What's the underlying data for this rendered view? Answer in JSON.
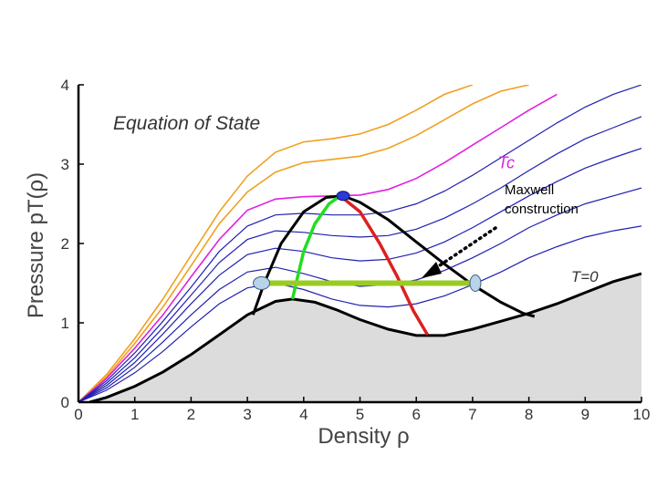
{
  "chart_data": {
    "type": "line",
    "title": "Equation of State",
    "xlabel": "Density  ρ",
    "ylabel": "Pressure  pT(ρ)",
    "xlim": [
      0,
      10
    ],
    "ylim": [
      0,
      4
    ],
    "xticks": [
      "0",
      "1",
      "2",
      "3",
      "4",
      "5",
      "6",
      "7",
      "8",
      "9",
      "10"
    ],
    "yticks": [
      "0",
      "1",
      "2",
      "3",
      "4"
    ],
    "grid": false,
    "annotations": {
      "tc_label": "Tc",
      "maxwell_label_line1": "Maxwell",
      "maxwell_label_line2": "construction",
      "t0_label": "T=0"
    },
    "colors": {
      "hot_isotherm": "#f0a020",
      "critical_isotherm": "#e020e0",
      "cold_isotherm": "#2020b0",
      "boundary": "#000000",
      "spinodal_left": "#22dd22",
      "spinodal_right": "#dd2020",
      "maxwell_line": "#99cc22",
      "shaded_region": "#dcdcdc"
    },
    "isotherms_hot": [
      {
        "x": [
          0,
          0.5,
          1,
          1.5,
          2,
          2.5,
          3,
          3.5,
          4,
          4.5,
          5,
          5.5,
          6,
          6.5,
          7
        ],
        "y": [
          0,
          0.35,
          0.8,
          1.3,
          1.85,
          2.4,
          2.85,
          3.15,
          3.28,
          3.32,
          3.38,
          3.5,
          3.68,
          3.88,
          4.0
        ]
      },
      {
        "x": [
          0,
          0.5,
          1,
          1.5,
          2,
          2.5,
          3,
          3.5,
          4,
          4.5,
          5,
          5.5,
          6,
          6.5,
          7,
          7.5,
          8
        ],
        "y": [
          0,
          0.32,
          0.74,
          1.2,
          1.72,
          2.25,
          2.65,
          2.9,
          3.02,
          3.06,
          3.1,
          3.2,
          3.36,
          3.56,
          3.76,
          3.92,
          4.0
        ]
      }
    ],
    "isotherm_critical": {
      "x": [
        0,
        0.5,
        1,
        1.5,
        2,
        2.5,
        3,
        3.5,
        4,
        4.5,
        5,
        5.5,
        6,
        6.5,
        7,
        7.5,
        8,
        8.5
      ],
      "y": [
        0,
        0.3,
        0.68,
        1.1,
        1.58,
        2.05,
        2.42,
        2.56,
        2.59,
        2.6,
        2.61,
        2.68,
        2.82,
        3.02,
        3.24,
        3.46,
        3.68,
        3.88
      ]
    },
    "isotherms_cold": [
      {
        "x": [
          0,
          0.5,
          1,
          1.5,
          2,
          2.5,
          3,
          3.5,
          4,
          4.5,
          5,
          5.5,
          6,
          6.5,
          7,
          7.5,
          8,
          8.5,
          9,
          9.5,
          10
        ],
        "y": [
          0,
          0.27,
          0.62,
          1.02,
          1.45,
          1.9,
          2.22,
          2.36,
          2.38,
          2.36,
          2.36,
          2.4,
          2.5,
          2.66,
          2.86,
          3.08,
          3.3,
          3.52,
          3.72,
          3.88,
          4.0
        ]
      },
      {
        "x": [
          0,
          0.5,
          1,
          1.5,
          2,
          2.5,
          3,
          3.5,
          4,
          4.5,
          5,
          5.5,
          6,
          6.5,
          7,
          7.5,
          8,
          8.5,
          9,
          9.5,
          10
        ],
        "y": [
          0,
          0.24,
          0.56,
          0.94,
          1.35,
          1.76,
          2.05,
          2.16,
          2.14,
          2.1,
          2.08,
          2.1,
          2.18,
          2.32,
          2.5,
          2.7,
          2.92,
          3.13,
          3.32,
          3.46,
          3.6
        ]
      },
      {
        "x": [
          0,
          0.5,
          1,
          1.5,
          2,
          2.5,
          3,
          3.5,
          4,
          4.5,
          5,
          5.5,
          6,
          6.5,
          7,
          7.5,
          8,
          8.5,
          9,
          9.5,
          10
        ],
        "y": [
          0,
          0.21,
          0.5,
          0.86,
          1.24,
          1.6,
          1.86,
          1.94,
          1.9,
          1.82,
          1.78,
          1.8,
          1.88,
          2.02,
          2.2,
          2.4,
          2.6,
          2.78,
          2.95,
          3.08,
          3.2
        ]
      },
      {
        "x": [
          0,
          0.5,
          1,
          1.5,
          2,
          2.5,
          3,
          3.5,
          4,
          4.5,
          5,
          5.5,
          6,
          6.5,
          7,
          7.5,
          8,
          8.5,
          9,
          9.5,
          10
        ],
        "y": [
          0,
          0.18,
          0.44,
          0.76,
          1.1,
          1.42,
          1.64,
          1.7,
          1.62,
          1.52,
          1.46,
          1.48,
          1.54,
          1.66,
          1.82,
          2.0,
          2.2,
          2.36,
          2.5,
          2.6,
          2.7
        ]
      },
      {
        "x": [
          0,
          0.5,
          1,
          1.5,
          2,
          2.5,
          3,
          3.5,
          4,
          4.5,
          5,
          5.5,
          6,
          6.5,
          7,
          7.5,
          8,
          8.5,
          9,
          9.5,
          10
        ],
        "y": [
          0,
          0.15,
          0.37,
          0.64,
          0.95,
          1.24,
          1.44,
          1.5,
          1.42,
          1.3,
          1.22,
          1.2,
          1.24,
          1.34,
          1.48,
          1.64,
          1.82,
          1.96,
          2.08,
          2.16,
          2.22
        ]
      }
    ],
    "t0_curve": {
      "x": [
        0.2,
        0.5,
        1,
        1.5,
        2,
        2.5,
        3,
        3.5,
        3.8,
        4.2,
        4.6,
        5,
        5.5,
        6,
        6.5,
        7,
        7.5,
        8,
        8.5,
        9,
        9.5,
        10
      ],
      "y": [
        0,
        0.06,
        0.2,
        0.38,
        0.6,
        0.85,
        1.1,
        1.27,
        1.3,
        1.26,
        1.16,
        1.04,
        0.92,
        0.84,
        0.84,
        0.92,
        1.02,
        1.12,
        1.24,
        1.38,
        1.52,
        1.62
      ]
    },
    "coexistence_curve": {
      "x": [
        3.1,
        3.3,
        3.6,
        4.0,
        4.4,
        4.7,
        5.0,
        5.5,
        6.0,
        6.5,
        7.0,
        7.5,
        7.9,
        8.1
      ],
      "y": [
        1.1,
        1.5,
        2.0,
        2.4,
        2.58,
        2.6,
        2.52,
        2.3,
        2.02,
        1.74,
        1.48,
        1.26,
        1.12,
        1.08
      ]
    },
    "spinodal_left": {
      "x": [
        3.8,
        3.9,
        4.0,
        4.2,
        4.45,
        4.65
      ],
      "y": [
        1.3,
        1.6,
        1.9,
        2.25,
        2.5,
        2.6
      ]
    },
    "spinodal_right": {
      "x": [
        4.65,
        5.0,
        5.35,
        5.65,
        5.95,
        6.2
      ],
      "y": [
        2.6,
        2.4,
        2.0,
        1.6,
        1.15,
        0.85
      ]
    },
    "maxwell_line": {
      "x": [
        3.25,
        7.05
      ],
      "y": [
        1.5,
        1.5
      ]
    },
    "critical_point": {
      "x": 4.7,
      "y": 2.6
    }
  }
}
